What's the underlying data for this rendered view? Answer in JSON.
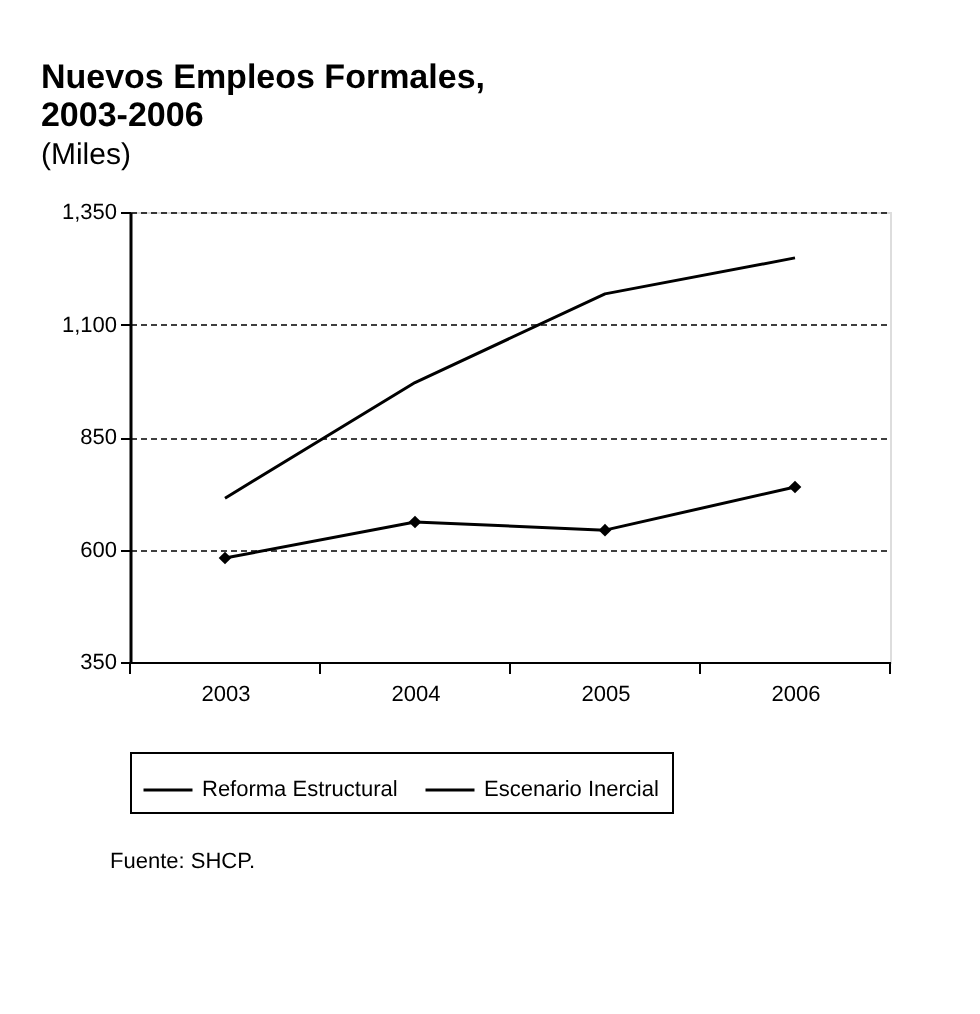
{
  "chart_data": {
    "type": "line",
    "title": "Nuevos Empleos Formales, 2003-2006",
    "subtitle": "(Miles)",
    "categories": [
      "2003",
      "2004",
      "2005",
      "2006"
    ],
    "series": [
      {
        "name": "Reforma Estructural",
        "color": "#000000",
        "marker": "none",
        "values": [
          714,
          971,
          1168,
          1248
        ]
      },
      {
        "name": "Escenario Inercial",
        "color": "#000000",
        "marker": "diamond",
        "values": [
          581,
          661,
          643,
          739
        ]
      }
    ],
    "ylim": [
      350,
      1350
    ],
    "yticks": [
      350,
      600,
      850,
      {
        "value": 1100,
        "label": "1,100"
      },
      {
        "value": 1350,
        "label": "1,350"
      }
    ],
    "grid": "y",
    "legend": "bottom",
    "line_style": "solid",
    "annotations": [
      "Fuente: SHCP."
    ]
  }
}
